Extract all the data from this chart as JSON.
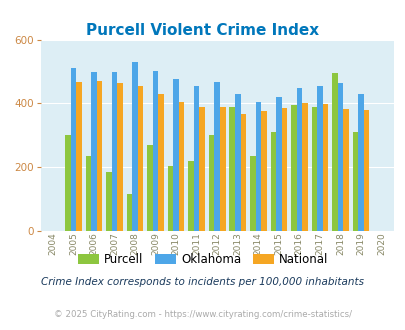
{
  "title": "Purcell Violent Crime Index",
  "all_years": [
    2004,
    2005,
    2006,
    2007,
    2008,
    2009,
    2010,
    2011,
    2012,
    2013,
    2014,
    2015,
    2016,
    2017,
    2018,
    2019,
    2020
  ],
  "bar_years": [
    2005,
    2006,
    2007,
    2008,
    2009,
    2010,
    2011,
    2012,
    2013,
    2014,
    2015,
    2016,
    2017,
    2018,
    2019
  ],
  "purcell": [
    300,
    235,
    185,
    115,
    270,
    205,
    220,
    300,
    390,
    235,
    310,
    395,
    390,
    495,
    310
  ],
  "oklahoma": [
    510,
    498,
    498,
    530,
    503,
    478,
    455,
    468,
    428,
    405,
    420,
    448,
    455,
    465,
    430
  ],
  "national": [
    468,
    470,
    465,
    455,
    428,
    403,
    390,
    390,
    368,
    375,
    385,
    400,
    397,
    382,
    380
  ],
  "bar_width": 0.27,
  "ylim": [
    0,
    600
  ],
  "yticks": [
    0,
    200,
    400,
    600
  ],
  "color_purcell": "#8dc63f",
  "color_oklahoma": "#4da6e8",
  "color_national": "#f5a623",
  "bg_color": "#ddeef5",
  "title_color": "#0077bb",
  "footnote1_color": "#1a3a5c",
  "footnote2_color": "#aaaaaa",
  "footnote1": "Crime Index corresponds to incidents per 100,000 inhabitants",
  "footnote2": "© 2025 CityRating.com - https://www.cityrating.com/crime-statistics/",
  "legend_labels": [
    "Purcell",
    "Oklahoma",
    "National"
  ],
  "tick_color": "#888866",
  "ytick_color": "#cc8844"
}
